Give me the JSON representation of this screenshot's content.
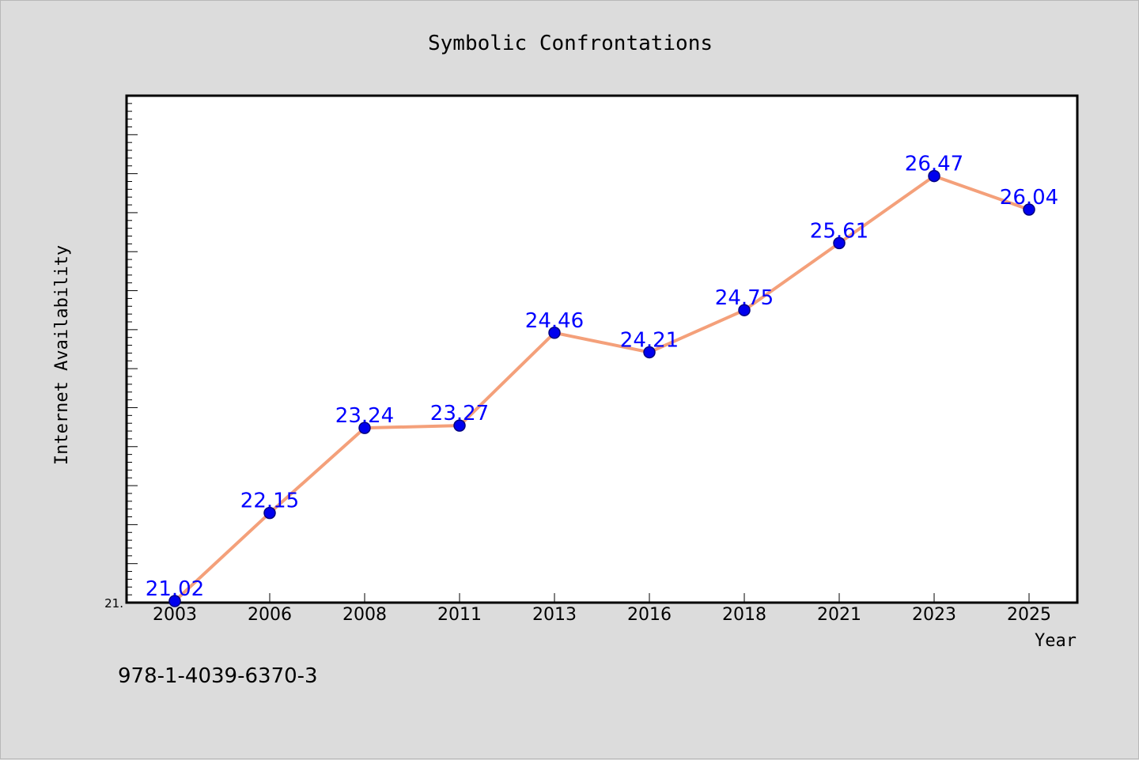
{
  "chart_data": {
    "type": "line",
    "title": "Symbolic Confrontations",
    "xlabel": "Year",
    "ylabel": "Internet Availability",
    "categories": [
      "2003",
      "2006",
      "2008",
      "2011",
      "2013",
      "2016",
      "2018",
      "2021",
      "2023",
      "2025"
    ],
    "series": [
      {
        "values": [
          21.02,
          22.15,
          23.24,
          23.27,
          24.46,
          24.21,
          24.75,
          25.61,
          26.47,
          26.04
        ]
      }
    ],
    "value_labels": [
      "21.02",
      "22.15",
      "23.24",
      "23.27",
      "24.46",
      "24.21",
      "24.75",
      "25.61",
      "26.47",
      "26.04"
    ],
    "ylim": [
      21.0,
      27.5
    ],
    "ytick_labels": [
      "21."
    ],
    "grid": false,
    "legend": "none",
    "colors": {
      "line": "#f4a07a",
      "marker": "#0000ee",
      "marker_edge": "#000080",
      "data_label": "#0000ff",
      "background": "#dcdcdc",
      "plot_background": "#ffffff"
    }
  },
  "footer": {
    "code": "978-1-4039-6370-3"
  }
}
